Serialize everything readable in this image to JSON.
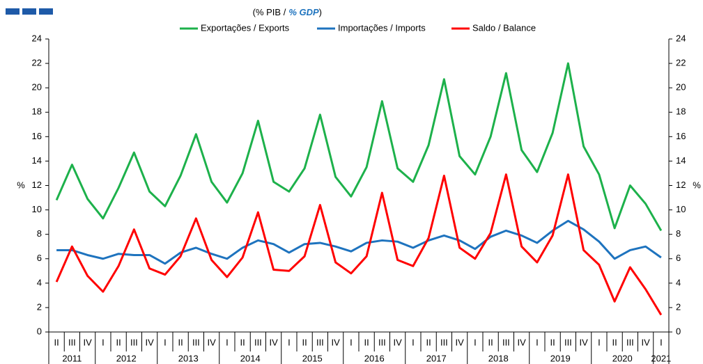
{
  "chart_data": {
    "type": "line",
    "subtitle": {
      "pt": "(% PIB /",
      "en": "% GDP",
      "close": ")"
    },
    "y_label": "%",
    "y2_label": "%",
    "categories": [
      "II",
      "III",
      "IV",
      "I",
      "II",
      "III",
      "IV",
      "I",
      "II",
      "III",
      "IV",
      "I",
      "II",
      "III",
      "IV",
      "I",
      "II",
      "III",
      "IV",
      "I",
      "II",
      "III",
      "IV",
      "I",
      "II",
      "III",
      "IV",
      "I",
      "II",
      "III",
      "IV",
      "I",
      "II",
      "III",
      "IV",
      "I",
      "II",
      "III",
      "IV",
      "I"
    ],
    "years": [
      "2011",
      "2012",
      "2013",
      "2014",
      "2015",
      "2016",
      "2017",
      "2018",
      "2019",
      "2020",
      "2021"
    ],
    "series": [
      {
        "name": "Exportações / Exports",
        "color": "#1db14b",
        "values": [
          10.8,
          13.7,
          10.9,
          9.3,
          11.8,
          14.7,
          11.5,
          10.3,
          12.8,
          16.2,
          12.3,
          10.6,
          13.0,
          17.3,
          12.3,
          11.5,
          13.4,
          17.8,
          12.7,
          11.1,
          13.5,
          18.9,
          13.4,
          12.3,
          15.3,
          20.7,
          14.4,
          12.9,
          16.0,
          21.2,
          14.9,
          13.1,
          16.3,
          22.0,
          15.2,
          12.9,
          8.5,
          12.0,
          10.5,
          8.3
        ]
      },
      {
        "name": "Importações / Imports",
        "color": "#1e73be",
        "values": [
          6.7,
          6.7,
          6.3,
          6.0,
          6.4,
          6.3,
          6.3,
          5.6,
          6.5,
          6.9,
          6.4,
          6.0,
          6.9,
          7.5,
          7.2,
          6.5,
          7.2,
          7.3,
          7.0,
          6.6,
          7.3,
          7.5,
          7.4,
          6.9,
          7.5,
          7.9,
          7.5,
          6.8,
          7.8,
          8.3,
          7.9,
          7.3,
          8.3,
          9.1,
          8.4,
          7.4,
          6.0,
          6.7,
          7.0,
          6.1
        ]
      },
      {
        "name": "Saldo / Balance",
        "color": "#ff0000",
        "values": [
          4.1,
          7.0,
          4.6,
          3.3,
          5.4,
          8.4,
          5.2,
          4.7,
          6.2,
          9.3,
          5.9,
          4.5,
          6.1,
          9.8,
          5.1,
          5.0,
          6.2,
          10.4,
          5.7,
          4.8,
          6.2,
          11.4,
          5.9,
          5.4,
          7.7,
          12.8,
          6.9,
          6.0,
          8.1,
          12.9,
          7.0,
          5.7,
          7.9,
          12.9,
          6.7,
          5.5,
          2.5,
          5.3,
          3.5,
          1.4
        ]
      }
    ],
    "ylim": [
      0,
      24
    ],
    "yticks": [
      0,
      2,
      4,
      6,
      8,
      10,
      12,
      14,
      16,
      18,
      20,
      22,
      24
    ],
    "y2lim": [
      0,
      24
    ],
    "y2ticks": [
      0,
      2,
      4,
      6,
      8,
      10,
      12,
      14,
      16,
      18,
      20,
      22,
      24
    ],
    "grid": false
  }
}
